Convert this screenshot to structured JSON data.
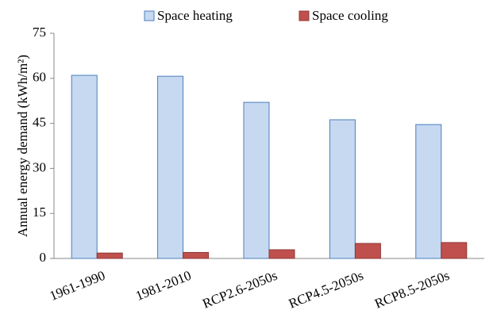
{
  "chart_data": {
    "type": "bar",
    "y_label": "Annual energy demand (kWh/m²)",
    "categories": [
      "1961-1990",
      "1981-2010",
      "RCP2.6-2050s",
      "RCP4.5-2050s",
      "RCP8.5-2050s"
    ],
    "series": [
      {
        "name": "Space heating",
        "color": "#c6d9f1",
        "values": [
          61,
          60.7,
          52,
          46.2,
          44.6
        ]
      },
      {
        "name": "Space cooling",
        "color": "#c0504d",
        "values": [
          1.8,
          2.0,
          2.9,
          5.0,
          5.3
        ]
      }
    ],
    "ylim": [
      0,
      75
    ],
    "yticks": [
      0,
      15,
      30,
      45,
      60,
      75
    ],
    "grid": false,
    "legend": "top"
  }
}
